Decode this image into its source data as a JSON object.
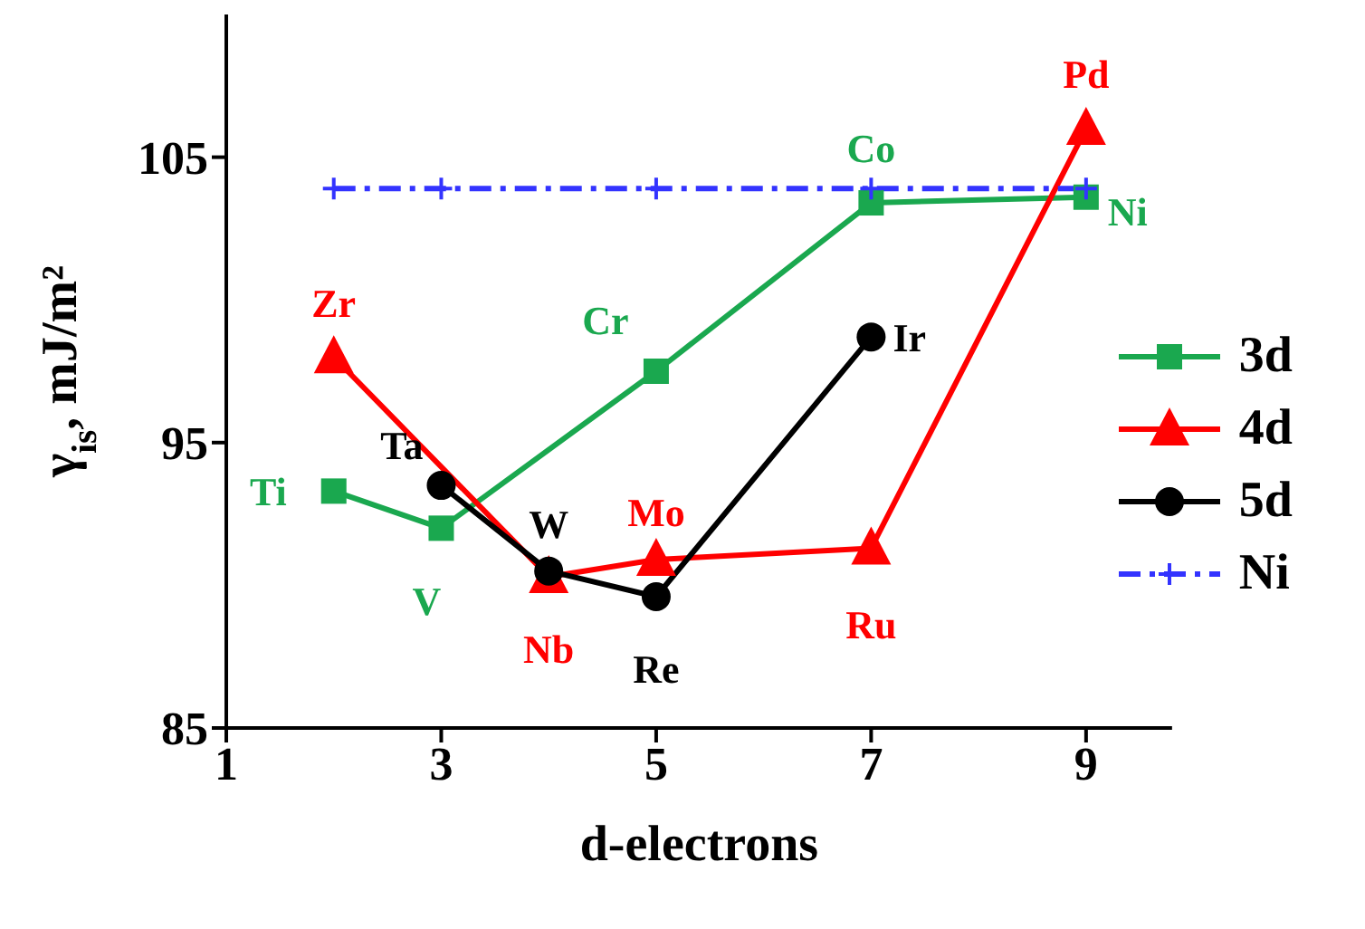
{
  "chart_data": {
    "type": "line",
    "xlabel": "d-electrons",
    "ylabel": "γ$_{is}$, mJ/m²",
    "xlim": [
      1,
      9.8
    ],
    "xticks": [
      1,
      3,
      5,
      7,
      9
    ],
    "ylim": [
      85,
      110
    ],
    "yticks": [
      85,
      95,
      105
    ],
    "legend": "right",
    "series": [
      {
        "name": "3d",
        "color": "#1aa84f",
        "marker": "square",
        "line_style": "solid",
        "x": [
          2,
          3,
          5,
          7,
          9
        ],
        "values": [
          93.3,
          92.0,
          97.5,
          103.4,
          103.6
        ]
      },
      {
        "name": "4d",
        "color": "#ff0000",
        "marker": "triangle",
        "line_style": "solid",
        "x": [
          2,
          4,
          5,
          7,
          9
        ],
        "values": [
          98.0,
          90.3,
          90.9,
          91.3,
          106.0
        ]
      },
      {
        "name": "5d",
        "color": "#000000",
        "marker": "circle",
        "line_style": "solid",
        "x": [
          3,
          4,
          5,
          7
        ],
        "values": [
          93.5,
          90.5,
          89.6,
          98.7
        ]
      },
      {
        "name": "Ni",
        "color": "#3333ff",
        "marker": "cross",
        "line_style": "dashed",
        "x": [
          2,
          3,
          5,
          7,
          9
        ],
        "values": [
          103.9,
          103.9,
          103.9,
          103.9,
          103.9
        ]
      }
    ],
    "annotations": [
      {
        "text": "Ti",
        "x": 2,
        "y": 93.3
      },
      {
        "text": "V",
        "x": 3,
        "y": 92.0
      },
      {
        "text": "Cr",
        "x": 5,
        "y": 97.5
      },
      {
        "text": "Co",
        "x": 7,
        "y": 103.4
      },
      {
        "text": "Ni",
        "x": 9,
        "y": 103.6
      },
      {
        "text": "Zr",
        "x": 2,
        "y": 98.0
      },
      {
        "text": "Nb",
        "x": 4,
        "y": 90.3
      },
      {
        "text": "Mo",
        "x": 5,
        "y": 90.9
      },
      {
        "text": "Ru",
        "x": 7,
        "y": 91.3
      },
      {
        "text": "Pd",
        "x": 9,
        "y": 106.0
      },
      {
        "text": "Ta",
        "x": 3,
        "y": 93.5
      },
      {
        "text": "W",
        "x": 4,
        "y": 90.5
      },
      {
        "text": "Re",
        "x": 5,
        "y": 89.6
      },
      {
        "text": "Ir",
        "x": 7,
        "y": 98.7
      }
    ]
  }
}
